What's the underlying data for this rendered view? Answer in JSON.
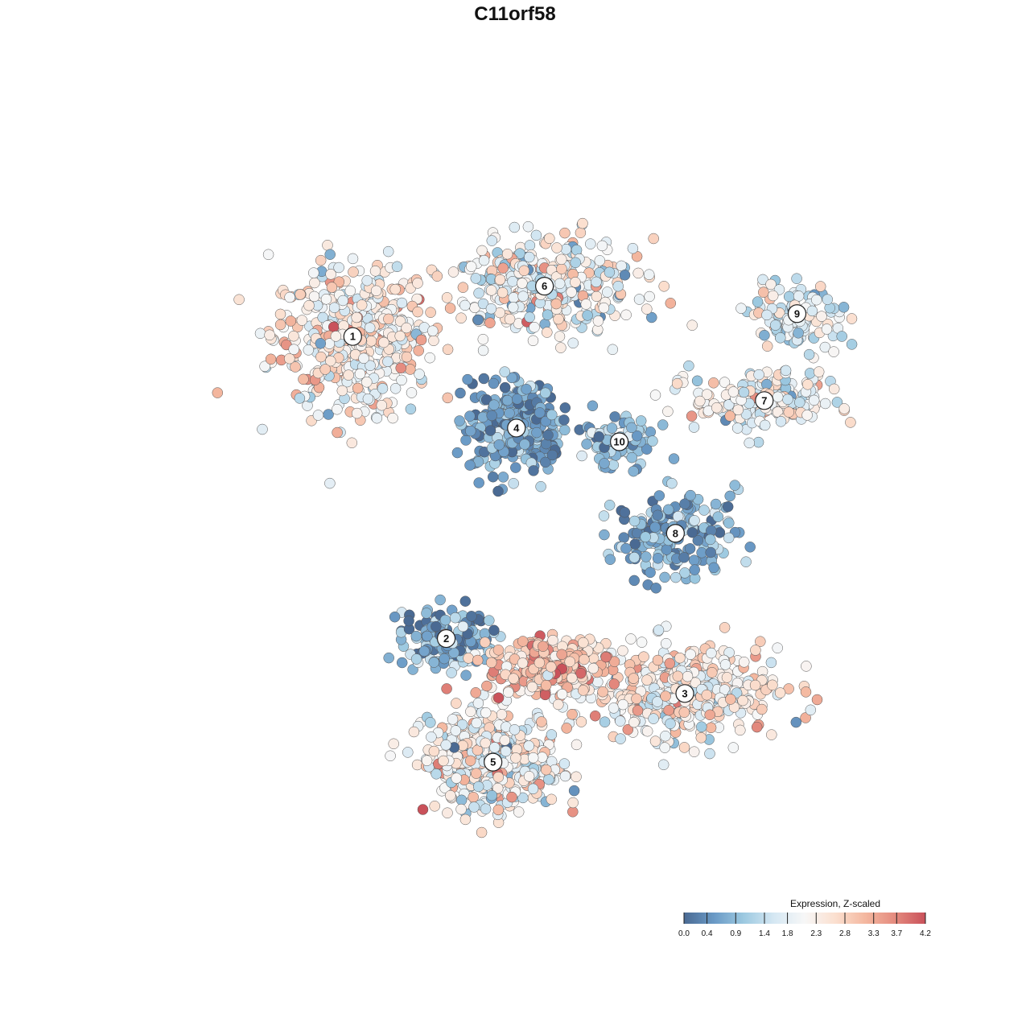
{
  "chart_data": {
    "type": "scatter",
    "title": "C11orf58",
    "xlabel": "",
    "ylabel": "",
    "grid": false,
    "axes_visible": false,
    "legend": {
      "title": "Expression, Z-scaled",
      "placement": "bottom-right",
      "ticks": [
        "0.0",
        "0.4",
        "0.9",
        "1.4",
        "1.8",
        "2.3",
        "2.8",
        "3.3",
        "3.7",
        "4.2"
      ],
      "range": [
        0.0,
        4.2
      ],
      "colors": [
        "#4a6a93",
        "#6a9ac6",
        "#9ecae1",
        "#d6e8f3",
        "#f7f7f7",
        "#fbe0d0",
        "#f4b8a0",
        "#e48a7e",
        "#c9515a"
      ]
    },
    "clusters": [
      {
        "label": "1",
        "x": -3.9,
        "y": 3.9,
        "sx": 1.55,
        "sy": 1.45,
        "n": 470,
        "mean": 2.3,
        "sd": 0.6
      },
      {
        "label": "2",
        "x": -1.9,
        "y": -2.7,
        "sx": 0.9,
        "sy": 0.65,
        "n": 150,
        "mean": 0.6,
        "sd": 0.55
      },
      {
        "label": "3",
        "x": 3.2,
        "y": -3.9,
        "sx": 1.8,
        "sy": 0.9,
        "n": 420,
        "mean": 2.2,
        "sd": 0.6
      },
      {
        "label": "4",
        "x": -0.4,
        "y": 1.9,
        "sx": 0.9,
        "sy": 0.9,
        "n": 330,
        "mean": 0.6,
        "sd": 0.45
      },
      {
        "label": "5",
        "x": -0.9,
        "y": -5.4,
        "sx": 1.3,
        "sy": 0.95,
        "n": 430,
        "mean": 2.1,
        "sd": 0.7
      },
      {
        "label": "6",
        "x": 0.2,
        "y": 5.0,
        "sx": 1.8,
        "sy": 0.9,
        "n": 350,
        "mean": 2.0,
        "sd": 0.7
      },
      {
        "label": "7",
        "x": 4.9,
        "y": 2.5,
        "sx": 1.4,
        "sy": 0.6,
        "n": 200,
        "mean": 2.0,
        "sd": 0.6
      },
      {
        "label": "8",
        "x": 3.0,
        "y": -0.4,
        "sx": 1.2,
        "sy": 0.8,
        "n": 180,
        "mean": 0.7,
        "sd": 0.5
      },
      {
        "label": "9",
        "x": 5.6,
        "y": 4.4,
        "sx": 0.9,
        "sy": 0.7,
        "n": 120,
        "mean": 1.8,
        "sd": 0.6
      },
      {
        "label": "10",
        "x": 1.8,
        "y": 1.6,
        "sx": 0.7,
        "sy": 0.5,
        "n": 100,
        "mean": 0.8,
        "sd": 0.5
      },
      {
        "label": "",
        "x": 0.3,
        "y": -3.3,
        "sx": 1.2,
        "sy": 0.6,
        "n": 260,
        "mean": 3.0,
        "sd": 0.55
      }
    ],
    "xlim": [
      -8,
      8
    ],
    "ylim": [
      -8,
      8
    ]
  }
}
